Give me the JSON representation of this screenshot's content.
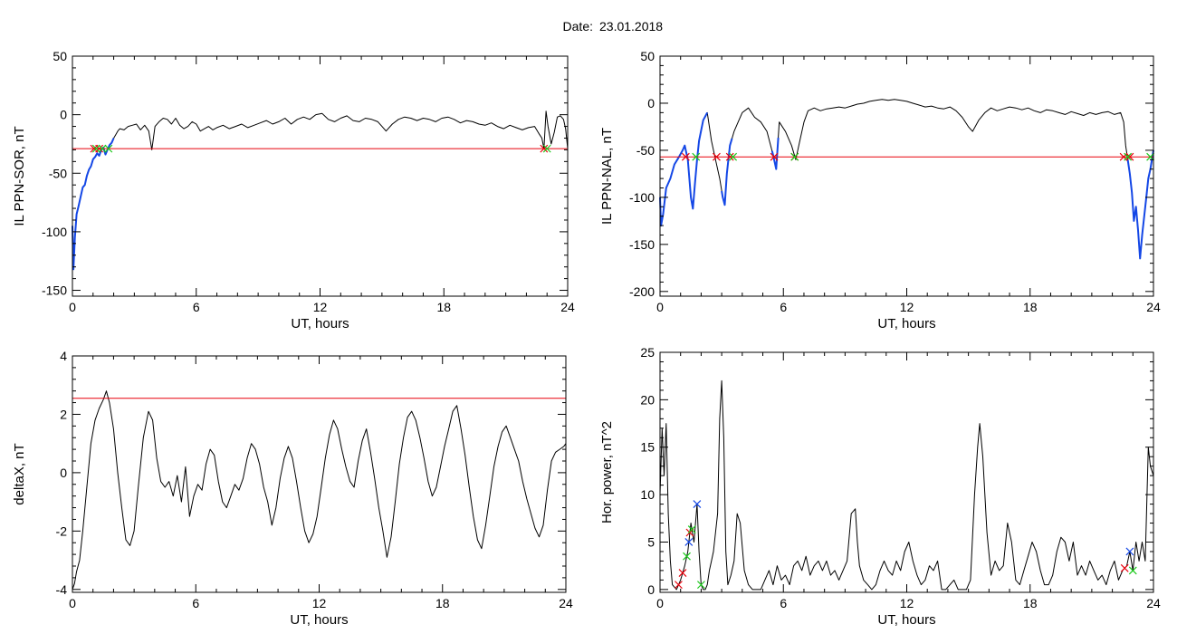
{
  "header": {
    "date_label": "Date:",
    "date_value": "23.01.2018"
  },
  "colors": {
    "trace": "#000000",
    "threshold": "#e8000b",
    "highlight": "#1447e6",
    "marker_red": "#e8000b",
    "marker_green": "#19c819",
    "marker_blue": "#1447e6"
  },
  "chart_data": [
    {
      "id": "tl",
      "type": "line",
      "title": "",
      "xlabel": "UT, hours",
      "ylabel": "IL PPN-SOR, nT",
      "xlim": [
        0,
        24
      ],
      "ylim": [
        -155,
        50
      ],
      "xticks": [
        0,
        6,
        12,
        18,
        24
      ],
      "yticks": [
        -150,
        -100,
        -50,
        0,
        50
      ],
      "threshold": -29,
      "series": [
        {
          "x": [
            0,
            0.05,
            0.12,
            0.2,
            0.3,
            0.4,
            0.5,
            0.6,
            0.7,
            0.8,
            0.9,
            1.0,
            1.1,
            1.2,
            1.3,
            1.4,
            1.5,
            1.6,
            1.7,
            1.8,
            1.9,
            2.0,
            2.1,
            2.2,
            2.3,
            2.5,
            2.7,
            2.9,
            3.1,
            3.3,
            3.5,
            3.7,
            3.85,
            4.0,
            4.2,
            4.4,
            4.6,
            4.8,
            5.0,
            5.2,
            5.4,
            5.6,
            5.8,
            6.0,
            6.2,
            6.4,
            6.6,
            6.8,
            7.0,
            7.3,
            7.6,
            7.9,
            8.2,
            8.5,
            8.8,
            9.1,
            9.4,
            9.7,
            10.0,
            10.3,
            10.6,
            10.9,
            11.2,
            11.5,
            11.8,
            12.1,
            12.4,
            12.7,
            13.0,
            13.3,
            13.6,
            13.9,
            14.2,
            14.5,
            14.8,
            15.0,
            15.2,
            15.5,
            15.8,
            16.1,
            16.4,
            16.7,
            17.0,
            17.3,
            17.6,
            17.9,
            18.2,
            18.5,
            18.8,
            19.1,
            19.4,
            19.7,
            20.0,
            20.3,
            20.6,
            20.9,
            21.2,
            21.5,
            21.8,
            22.1,
            22.4,
            22.6,
            22.75,
            22.85,
            22.95,
            23.05,
            23.2,
            23.35,
            23.5,
            23.65,
            23.8,
            23.9,
            24.0
          ],
          "y": [
            -95,
            -132,
            -105,
            -85,
            -78,
            -70,
            -62,
            -60,
            -52,
            -47,
            -44,
            -38,
            -36,
            -33,
            -35,
            -30,
            -28,
            -34,
            -30,
            -26,
            -24,
            -20,
            -17,
            -14,
            -12,
            -13,
            -10,
            -9,
            -8,
            -13,
            -9,
            -14,
            -30,
            -10,
            -6,
            -3,
            -4,
            -8,
            -3,
            -9,
            -12,
            -10,
            -6,
            -8,
            -14,
            -12,
            -10,
            -13,
            -11,
            -9,
            -12,
            -10,
            -8,
            -11,
            -9,
            -7,
            -5,
            -8,
            -6,
            -3,
            -8,
            -4,
            -2,
            -4,
            0,
            1,
            -4,
            -6,
            -3,
            -1,
            -5,
            -6,
            -3,
            -4,
            -6,
            -10,
            -14,
            -8,
            -4,
            -2,
            -3,
            -5,
            -3,
            -4,
            -6,
            -3,
            -2,
            -4,
            -7,
            -5,
            -6,
            -8,
            -9,
            -7,
            -10,
            -12,
            -9,
            -11,
            -13,
            -11,
            -10,
            -16,
            -20,
            -29,
            3,
            -10,
            -25,
            -15,
            -2,
            -1,
            -4,
            -12,
            -29
          ]
        }
      ],
      "highlight_x": [
        0,
        2.0
      ],
      "markers_red_x": [
        1.05,
        1.3,
        22.85
      ],
      "markers_green_x": [
        1.15,
        1.45,
        1.75,
        23.0
      ]
    },
    {
      "id": "tr",
      "type": "line",
      "title": "",
      "xlabel": "UT, hours",
      "ylabel": "IL PPN-NAL, nT",
      "xlim": [
        0,
        24
      ],
      "ylim": [
        -205,
        50
      ],
      "xticks": [
        0,
        6,
        12,
        18,
        24
      ],
      "yticks": [
        -200,
        -150,
        -100,
        -50,
        0,
        50
      ],
      "threshold": -57,
      "series": [
        {
          "x": [
            0,
            0.05,
            0.15,
            0.3,
            0.5,
            0.7,
            0.9,
            1.1,
            1.2,
            1.35,
            1.5,
            1.6,
            1.7,
            1.8,
            1.9,
            2.1,
            2.3,
            2.5,
            2.7,
            2.9,
            3.05,
            3.15,
            3.25,
            3.4,
            3.6,
            3.8,
            4.0,
            4.3,
            4.6,
            4.9,
            5.2,
            5.5,
            5.65,
            5.8,
            6.1,
            6.4,
            6.6,
            6.8,
            7.0,
            7.2,
            7.5,
            7.8,
            8.1,
            8.4,
            8.7,
            9.0,
            9.3,
            9.6,
            9.9,
            10.2,
            10.5,
            10.8,
            11.1,
            11.4,
            11.7,
            12.0,
            12.3,
            12.6,
            12.9,
            13.2,
            13.5,
            13.8,
            14.1,
            14.4,
            14.7,
            15.0,
            15.2,
            15.5,
            15.8,
            16.1,
            16.4,
            16.7,
            17.0,
            17.3,
            17.6,
            17.9,
            18.2,
            18.5,
            18.8,
            19.1,
            19.4,
            19.7,
            20.0,
            20.3,
            20.6,
            20.9,
            21.2,
            21.5,
            21.8,
            22.1,
            22.4,
            22.55,
            22.65,
            22.75,
            22.85,
            22.95,
            23.05,
            23.15,
            23.25,
            23.35,
            23.45,
            23.55,
            23.65,
            23.75,
            23.85,
            24.0
          ],
          "y": [
            -100,
            -130,
            -118,
            -90,
            -80,
            -65,
            -58,
            -50,
            -45,
            -60,
            -100,
            -112,
            -85,
            -60,
            -40,
            -18,
            -10,
            -40,
            -60,
            -80,
            -100,
            -108,
            -75,
            -45,
            -30,
            -20,
            -10,
            -5,
            -15,
            -20,
            -30,
            -55,
            -70,
            -20,
            -30,
            -45,
            -60,
            -40,
            -20,
            -8,
            -5,
            -8,
            -6,
            -5,
            -4,
            -5,
            -3,
            -1,
            0,
            2,
            3,
            4,
            3,
            4,
            3,
            2,
            0,
            -2,
            -4,
            -3,
            -5,
            -6,
            -4,
            -8,
            -15,
            -25,
            -30,
            -18,
            -10,
            -5,
            -8,
            -6,
            -4,
            -5,
            -7,
            -5,
            -8,
            -10,
            -7,
            -8,
            -10,
            -12,
            -9,
            -11,
            -13,
            -10,
            -12,
            -10,
            -9,
            -12,
            -10,
            -20,
            -45,
            -60,
            -75,
            -95,
            -125,
            -110,
            -135,
            -165,
            -140,
            -120,
            -100,
            -80,
            -70,
            -50
          ]
        }
      ],
      "highlight_x": [
        0,
        2.3,
        3.0,
        3.5,
        5.45,
        5.75,
        22.75,
        24.0
      ],
      "markers_red_x": [
        1.25,
        2.75,
        3.4,
        5.55,
        6.55,
        22.55,
        22.85
      ],
      "markers_green_x": [
        1.75,
        3.55,
        6.55,
        22.75,
        23.85
      ]
    },
    {
      "id": "bl",
      "type": "line",
      "title": "",
      "xlabel": "UT, hours",
      "ylabel": "deltaX, nT",
      "xlim": [
        0,
        24
      ],
      "ylim": [
        -4.1,
        4
      ],
      "xticks": [
        0,
        6,
        12,
        18,
        24
      ],
      "yticks": [
        -4,
        -2,
        0,
        2,
        4
      ],
      "threshold": 2.55,
      "series": [
        {
          "x": [
            0,
            0.1,
            0.2,
            0.35,
            0.5,
            0.7,
            0.9,
            1.1,
            1.3,
            1.5,
            1.65,
            1.8,
            2.0,
            2.2,
            2.4,
            2.6,
            2.8,
            3.0,
            3.2,
            3.45,
            3.7,
            3.9,
            4.1,
            4.3,
            4.5,
            4.7,
            4.9,
            5.1,
            5.3,
            5.5,
            5.7,
            5.9,
            6.1,
            6.3,
            6.5,
            6.7,
            6.9,
            7.1,
            7.3,
            7.5,
            7.7,
            7.9,
            8.1,
            8.3,
            8.5,
            8.7,
            8.9,
            9.1,
            9.3,
            9.5,
            9.7,
            9.9,
            10.1,
            10.3,
            10.5,
            10.7,
            10.9,
            11.1,
            11.3,
            11.5,
            11.7,
            11.9,
            12.1,
            12.3,
            12.5,
            12.7,
            12.9,
            13.1,
            13.3,
            13.5,
            13.7,
            13.9,
            14.1,
            14.3,
            14.5,
            14.7,
            14.9,
            15.1,
            15.3,
            15.5,
            15.7,
            15.9,
            16.1,
            16.3,
            16.5,
            16.7,
            16.9,
            17.1,
            17.3,
            17.5,
            17.7,
            17.9,
            18.1,
            18.3,
            18.5,
            18.7,
            18.9,
            19.1,
            19.3,
            19.5,
            19.7,
            19.9,
            20.1,
            20.3,
            20.5,
            20.7,
            20.9,
            21.1,
            21.3,
            21.5,
            21.7,
            21.9,
            22.1,
            22.3,
            22.5,
            22.7,
            22.9,
            23.1,
            23.3,
            23.5,
            23.7,
            23.9,
            24.0
          ],
          "y": [
            -4,
            -3.8,
            -3.4,
            -3,
            -2,
            -0.5,
            1,
            1.8,
            2.2,
            2.5,
            2.8,
            2.4,
            1.5,
            0,
            -1.2,
            -2.3,
            -2.5,
            -2.0,
            -0.5,
            1.2,
            2.1,
            1.8,
            0.5,
            -0.3,
            -0.5,
            -0.3,
            -0.8,
            -0.1,
            -1.0,
            0.2,
            -1.5,
            -0.8,
            -0.4,
            -0.6,
            0.3,
            0.8,
            0.6,
            -0.3,
            -1.0,
            -1.2,
            -0.8,
            -0.4,
            -0.6,
            -0.2,
            0.5,
            1.0,
            0.8,
            0.3,
            -0.5,
            -1.0,
            -1.8,
            -1.2,
            -0.2,
            0.5,
            0.9,
            0.5,
            -0.3,
            -1.2,
            -2.0,
            -2.4,
            -2.1,
            -1.5,
            -0.5,
            0.5,
            1.3,
            1.8,
            1.5,
            0.8,
            0.2,
            -0.3,
            -0.5,
            0.4,
            1.1,
            1.5,
            0.7,
            -0.2,
            -1.2,
            -2.0,
            -2.9,
            -2.2,
            -1.0,
            0.3,
            1.2,
            1.9,
            2.1,
            1.8,
            1.2,
            0.5,
            -0.3,
            -0.8,
            -0.5,
            0.2,
            0.9,
            1.5,
            2.1,
            2.3,
            1.5,
            0.6,
            -0.5,
            -1.5,
            -2.3,
            -2.6,
            -1.8,
            -0.8,
            0.2,
            0.9,
            1.4,
            1.6,
            1.2,
            0.8,
            0.4,
            -0.3,
            -0.9,
            -1.4,
            -1.9,
            -2.2,
            -1.8,
            -0.6,
            0.4,
            0.7,
            0.8,
            0.9,
            1.0
          ]
        }
      ]
    },
    {
      "id": "br",
      "type": "line",
      "title": "",
      "xlabel": "UT, hours",
      "ylabel": "Hor. power, nT^2",
      "xlim": [
        0,
        24
      ],
      "ylim": [
        -0.3,
        25
      ],
      "xticks": [
        0,
        6,
        12,
        18,
        24
      ],
      "yticks": [
        0,
        5,
        10,
        15,
        20,
        25
      ],
      "threshold": 25,
      "series": [
        {
          "x": [
            0,
            0.1,
            0.2,
            0.3,
            0.4,
            0.5,
            0.6,
            0.8,
            1.0,
            1.2,
            1.35,
            1.5,
            1.65,
            1.8,
            1.9,
            2.0,
            2.1,
            2.2,
            2.3,
            2.4,
            2.5,
            2.6,
            2.7,
            2.8,
            2.9,
            3.0,
            3.1,
            3.2,
            3.3,
            3.45,
            3.6,
            3.75,
            3.9,
            4.1,
            4.3,
            4.5,
            4.7,
            4.9,
            5.1,
            5.3,
            5.5,
            5.7,
            5.9,
            6.1,
            6.3,
            6.5,
            6.7,
            6.9,
            7.1,
            7.3,
            7.5,
            7.7,
            7.9,
            8.1,
            8.3,
            8.5,
            8.7,
            8.9,
            9.1,
            9.3,
            9.5,
            9.6,
            9.7,
            9.9,
            10.1,
            10.3,
            10.5,
            10.7,
            10.9,
            11.1,
            11.3,
            11.5,
            11.7,
            11.9,
            12.1,
            12.3,
            12.5,
            12.7,
            12.9,
            13.1,
            13.3,
            13.5,
            13.7,
            13.9,
            14.1,
            14.3,
            14.5,
            14.7,
            14.9,
            15.1,
            15.3,
            15.45,
            15.55,
            15.7,
            15.9,
            16.1,
            16.3,
            16.5,
            16.7,
            16.9,
            17.1,
            17.3,
            17.5,
            17.7,
            17.9,
            18.1,
            18.3,
            18.5,
            18.7,
            18.9,
            19.1,
            19.3,
            19.5,
            19.7,
            19.9,
            20.1,
            20.3,
            20.5,
            20.7,
            20.9,
            21.1,
            21.3,
            21.5,
            21.7,
            21.9,
            22.1,
            22.3,
            22.5,
            22.7,
            22.85,
            23.0,
            23.15,
            23.3,
            23.45,
            23.6,
            23.75,
            23.85,
            24.0
          ],
          "y": [
            10,
            17,
            12,
            17.5,
            8,
            3,
            0.5,
            0,
            1,
            2.5,
            4,
            7,
            5,
            9,
            4,
            0.5,
            0,
            0,
            0.5,
            2,
            3,
            4,
            6,
            8,
            18,
            22,
            16,
            4,
            0.5,
            1.5,
            3,
            8,
            7,
            2,
            0.5,
            0,
            0,
            0,
            1,
            2,
            0.5,
            2.5,
            1,
            1.5,
            0.5,
            2.5,
            3,
            2,
            3.5,
            1.5,
            2.5,
            3,
            2,
            3,
            1.5,
            2,
            1,
            2,
            3,
            8,
            8.5,
            5,
            2.5,
            1,
            0.5,
            0,
            0.5,
            2,
            3,
            2,
            1.5,
            3,
            2,
            4,
            5,
            3,
            1.5,
            0.5,
            1,
            2.5,
            2,
            3,
            0,
            0,
            0.5,
            1,
            0,
            0,
            0,
            1,
            10,
            15,
            17.5,
            14,
            6,
            1.5,
            3,
            2,
            2.5,
            7,
            5,
            1,
            0.5,
            2,
            3.5,
            5,
            4,
            2,
            0.5,
            0.5,
            1.5,
            4,
            5.5,
            5,
            3,
            5,
            1.5,
            2.5,
            1.5,
            3,
            2,
            1,
            1.5,
            0.5,
            2,
            3,
            1,
            2,
            2.5,
            4,
            2,
            5,
            3,
            5,
            3,
            15,
            13,
            12
          ]
        }
      ],
      "markers_red_x": [
        0.9,
        1.1,
        1.45,
        22.6
      ],
      "markers_green_x": [
        1.3,
        1.55,
        2.0,
        23.0
      ],
      "markers_blue_x": [
        1.4,
        1.8,
        22.85
      ]
    }
  ]
}
